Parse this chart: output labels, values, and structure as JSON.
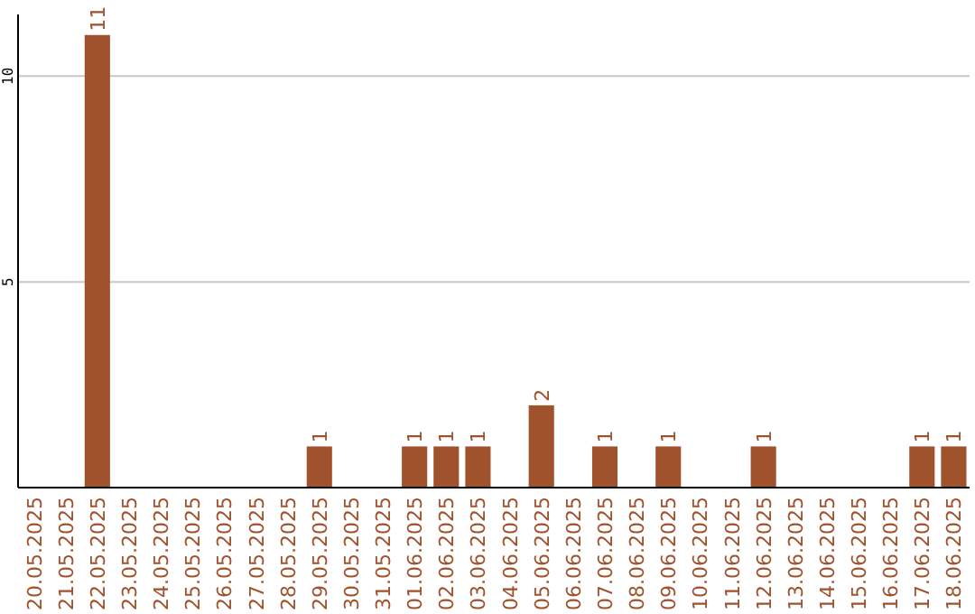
{
  "chart_data": {
    "type": "bar",
    "categories": [
      "20.05.2025",
      "21.05.2025",
      "22.05.2025",
      "23.05.2025",
      "24.05.2025",
      "25.05.2025",
      "26.05.2025",
      "27.05.2025",
      "28.05.2025",
      "29.05.2025",
      "30.05.2025",
      "31.05.2025",
      "01.06.2025",
      "02.06.2025",
      "03.06.2025",
      "04.06.2025",
      "05.06.2025",
      "06.06.2025",
      "07.06.2025",
      "08.06.2025",
      "09.06.2025",
      "10.06.2025",
      "11.06.2025",
      "12.06.2025",
      "13.06.2025",
      "14.06.2025",
      "15.06.2025",
      "16.06.2025",
      "17.06.2025",
      "18.06.2025"
    ],
    "values": [
      0,
      0,
      11,
      0,
      0,
      0,
      0,
      0,
      0,
      1,
      0,
      0,
      1,
      1,
      1,
      0,
      2,
      0,
      1,
      0,
      1,
      0,
      0,
      1,
      0,
      0,
      0,
      0,
      1,
      1
    ],
    "value_labels": [
      null,
      null,
      "11",
      null,
      null,
      null,
      null,
      null,
      null,
      "1",
      null,
      null,
      "1",
      "1",
      "1",
      null,
      "2",
      null,
      "1",
      null,
      "1",
      null,
      null,
      "1",
      null,
      null,
      null,
      null,
      "1",
      "1"
    ],
    "color": "#a0522d",
    "ylim": [
      0,
      11.5
    ],
    "yticks": [
      5,
      10
    ],
    "grid": "y"
  }
}
